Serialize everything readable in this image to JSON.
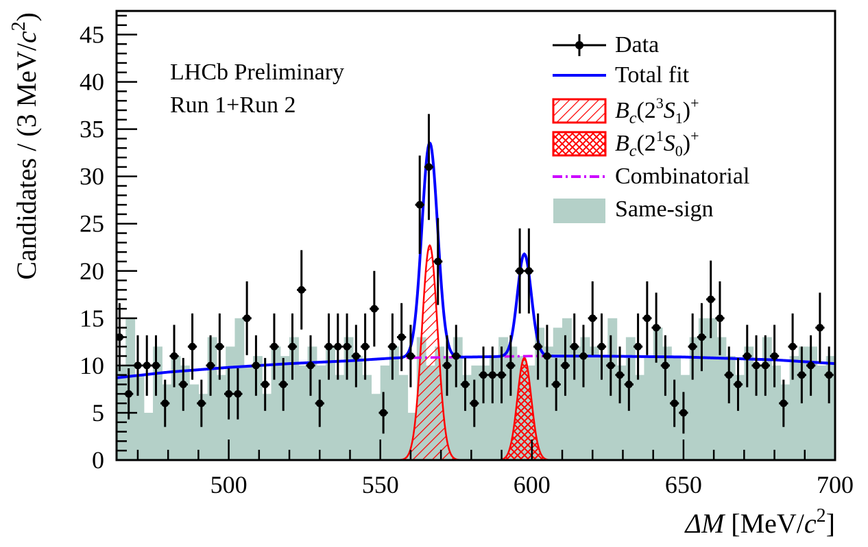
{
  "chart_data": {
    "type": "scatter",
    "annotations": [
      "LHCb Preliminary",
      "Run 1+Run 2"
    ],
    "xlabel": {
      "main": "ΔM",
      "unit_open": "[MeV/",
      "c": "c",
      "exp": "2",
      "unit_close": "]"
    },
    "ylabel": {
      "main": "Candidates / (3 MeV/",
      "c": "c",
      "exp": "2",
      "close": ")"
    },
    "xlim": [
      463,
      700
    ],
    "ylim": [
      0,
      47.5
    ],
    "x_ticks": [
      500,
      550,
      600,
      650,
      700
    ],
    "y_ticks": [
      0,
      5,
      10,
      15,
      20,
      25,
      30,
      35,
      40,
      45
    ],
    "legend_position": "top-right",
    "legend": {
      "data": "Data",
      "total_fit": "Total fit",
      "bc23s1": {
        "base": "B",
        "sub1": "c",
        "mid1": "(2",
        "sup1": "3",
        "mid2": "S",
        "sub2": "1",
        "mid3": ")",
        "sup2": "+"
      },
      "bc21s0": {
        "base": "B",
        "sub1": "c",
        "mid1": "(2",
        "sup1": "1",
        "mid2": "S",
        "sub2": "0",
        "mid3": ")",
        "sup2": "+"
      },
      "combinatorial": "Combinatorial",
      "same_sign": "Same-sign"
    },
    "colors": {
      "data": "#000000",
      "total_fit": "#0000ff",
      "signal": "#ff0000",
      "combinatorial": "#cc00ff",
      "same_sign": "#b4d0c8"
    },
    "bin_width": 3,
    "same_sign_bins": {
      "x0": 463,
      "values": [
        10,
        15,
        9,
        5,
        12,
        8,
        11,
        10,
        8,
        7,
        13,
        9,
        12,
        15,
        10,
        11,
        7,
        12,
        11,
        13,
        10,
        12,
        10,
        12,
        9,
        13,
        11,
        9,
        7,
        10,
        12,
        9,
        5,
        13,
        10,
        12,
        11,
        13,
        9,
        10,
        10,
        11,
        13,
        12,
        11,
        10,
        14,
        12,
        14,
        15,
        12,
        13,
        12,
        11,
        15,
        10,
        13,
        9,
        11,
        14,
        12,
        11,
        9,
        13,
        15,
        15,
        13,
        11,
        9,
        12,
        10,
        13,
        10,
        8,
        11,
        12,
        12,
        10,
        11,
        13
      ]
    },
    "data_points": {
      "x": [
        464,
        467,
        470,
        473,
        476,
        479,
        482,
        485,
        488,
        491,
        494,
        497,
        500,
        503,
        506,
        509,
        512,
        515,
        518,
        521,
        524,
        527,
        530,
        533,
        536,
        539,
        542,
        545,
        548,
        551,
        554,
        557,
        560,
        563,
        566,
        569,
        572,
        575,
        578,
        581,
        584,
        587,
        590,
        593,
        596,
        599,
        602,
        605,
        608,
        611,
        614,
        617,
        620,
        623,
        626,
        629,
        632,
        635,
        638,
        641,
        644,
        647,
        650,
        653,
        656,
        659,
        662,
        665,
        668,
        671,
        674,
        677,
        680,
        683,
        686,
        689,
        692,
        695,
        698
      ],
      "y": [
        13,
        7,
        10,
        10,
        10,
        6,
        11,
        8,
        12,
        6,
        10,
        12,
        7,
        7,
        15,
        10,
        8,
        12,
        8,
        12,
        18,
        10,
        6,
        12,
        12,
        12,
        11,
        12,
        16,
        5,
        12,
        13,
        11,
        27,
        31,
        21,
        10,
        11,
        8,
        6,
        9,
        9,
        9,
        10,
        20,
        20,
        12,
        11,
        8,
        10,
        12,
        11,
        15,
        12,
        10,
        9,
        8,
        12,
        15,
        14,
        10,
        6,
        5,
        12,
        13,
        17,
        15,
        9,
        8,
        11,
        10,
        10,
        11,
        6,
        12,
        9,
        10,
        14,
        9
      ],
      "yerr": [
        3.6,
        2.7,
        3.2,
        3.2,
        3.2,
        2.5,
        3.3,
        2.8,
        3.5,
        2.5,
        3.2,
        3.5,
        2.7,
        2.7,
        3.9,
        3.2,
        2.8,
        3.5,
        2.8,
        3.5,
        4.2,
        3.2,
        2.5,
        3.5,
        3.5,
        3.5,
        3.3,
        3.5,
        4.0,
        2.2,
        3.5,
        3.6,
        3.3,
        5.2,
        5.6,
        4.6,
        3.2,
        3.3,
        2.8,
        2.5,
        3.0,
        3.0,
        3.0,
        3.2,
        4.5,
        4.5,
        3.5,
        3.3,
        2.8,
        3.2,
        3.5,
        3.3,
        3.9,
        3.5,
        3.2,
        3.0,
        2.8,
        3.5,
        3.9,
        3.7,
        3.2,
        2.5,
        2.2,
        3.5,
        3.6,
        4.1,
        3.9,
        3.0,
        2.8,
        3.3,
        3.2,
        3.2,
        3.3,
        2.5,
        3.5,
        3.0,
        3.2,
        3.7,
        3.0
      ]
    },
    "combinatorial_curve": {
      "x": [
        463,
        480,
        500,
        520,
        540,
        555,
        580,
        600,
        620,
        650,
        680,
        700
      ],
      "y": [
        8.7,
        9.3,
        9.8,
        10.2,
        10.5,
        10.8,
        10.9,
        11.0,
        11.0,
        10.9,
        10.6,
        10.2
      ]
    },
    "peak_23s1": {
      "mean": 566.3,
      "sigma": 2.6,
      "amplitude": 22.7
    },
    "peak_21s0": {
      "mean": 597.5,
      "sigma": 2.3,
      "amplitude": 10.8
    }
  }
}
